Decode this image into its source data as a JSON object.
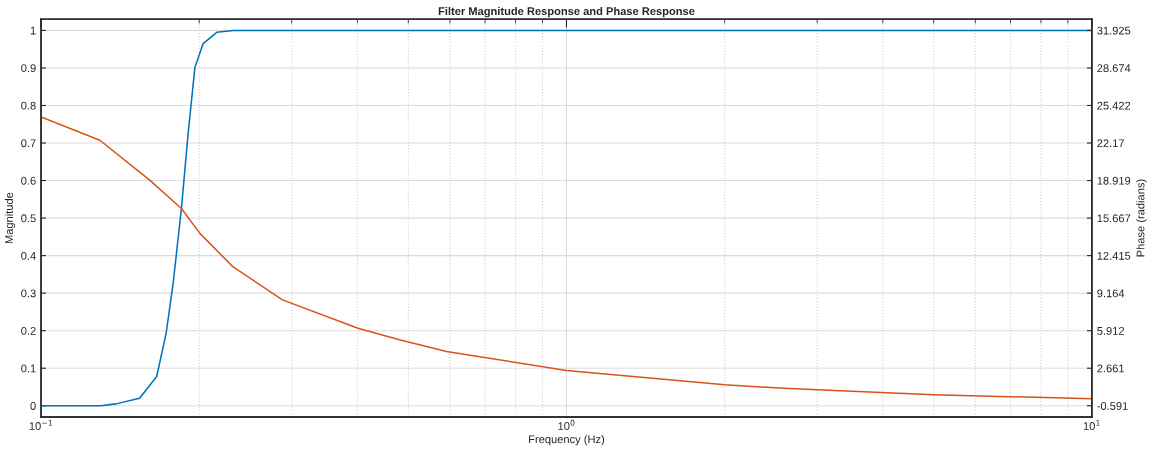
{
  "chart_data": {
    "type": "line",
    "title": "Filter Magnitude Response and Phase Response",
    "xlabel": "Frequency (Hz)",
    "ylabel": "Magnitude",
    "y2label": "Phase (radians)",
    "log": "x",
    "grid": true,
    "line_style": "solid",
    "marker": "none",
    "xlim": [
      0.1,
      10
    ],
    "xticks": [
      {
        "value": 0.1,
        "label": "10$^{−1}$"
      },
      {
        "value": 1,
        "label": "10$^{0}$"
      },
      {
        "value": 10,
        "label": "10$^{1}$"
      }
    ],
    "ylim": [
      -0.03,
      1.03
    ],
    "yticks": [
      0,
      0.1,
      0.2,
      0.3,
      0.4,
      0.5,
      0.6,
      0.7,
      0.8,
      0.9,
      1
    ],
    "y2lim": [
      -1.566,
      32.9
    ],
    "y2ticks": [
      -0.591,
      2.661,
      5.912,
      9.164,
      12.415,
      15.667,
      18.919,
      22.17,
      25.422,
      28.674,
      31.925
    ],
    "series": [
      {
        "color": "#0072bd",
        "x": [
          0.1,
          0.12,
          0.13,
          0.139,
          0.154,
          0.166,
          0.173,
          0.1784,
          0.185,
          0.1905,
          0.1963,
          0.2035,
          0.216,
          0.232,
          0.5,
          1,
          10
        ],
        "values": [
          0,
          0,
          0,
          0.005,
          0.02,
          0.078,
          0.193,
          0.326,
          0.526,
          0.725,
          0.902,
          0.965,
          0.995,
          1,
          1,
          1,
          1
        ]
      },
      {
        "color": "#d95319",
        "axis": "y2",
        "x": [
          0.1,
          0.1294,
          0.161,
          0.185,
          0.2006,
          0.2317,
          0.288,
          0.401,
          0.481,
          0.591,
          1.0,
          2.0,
          2.54,
          3.0,
          5.0,
          10
        ],
        "values": [
          24.43,
          22.41,
          18.95,
          16.5,
          14.34,
          11.46,
          8.58,
          6.13,
          5.12,
          4.11,
          2.47,
          1.23,
          0.94,
          0.79,
          0.36,
          0.015
        ]
      }
    ]
  }
}
